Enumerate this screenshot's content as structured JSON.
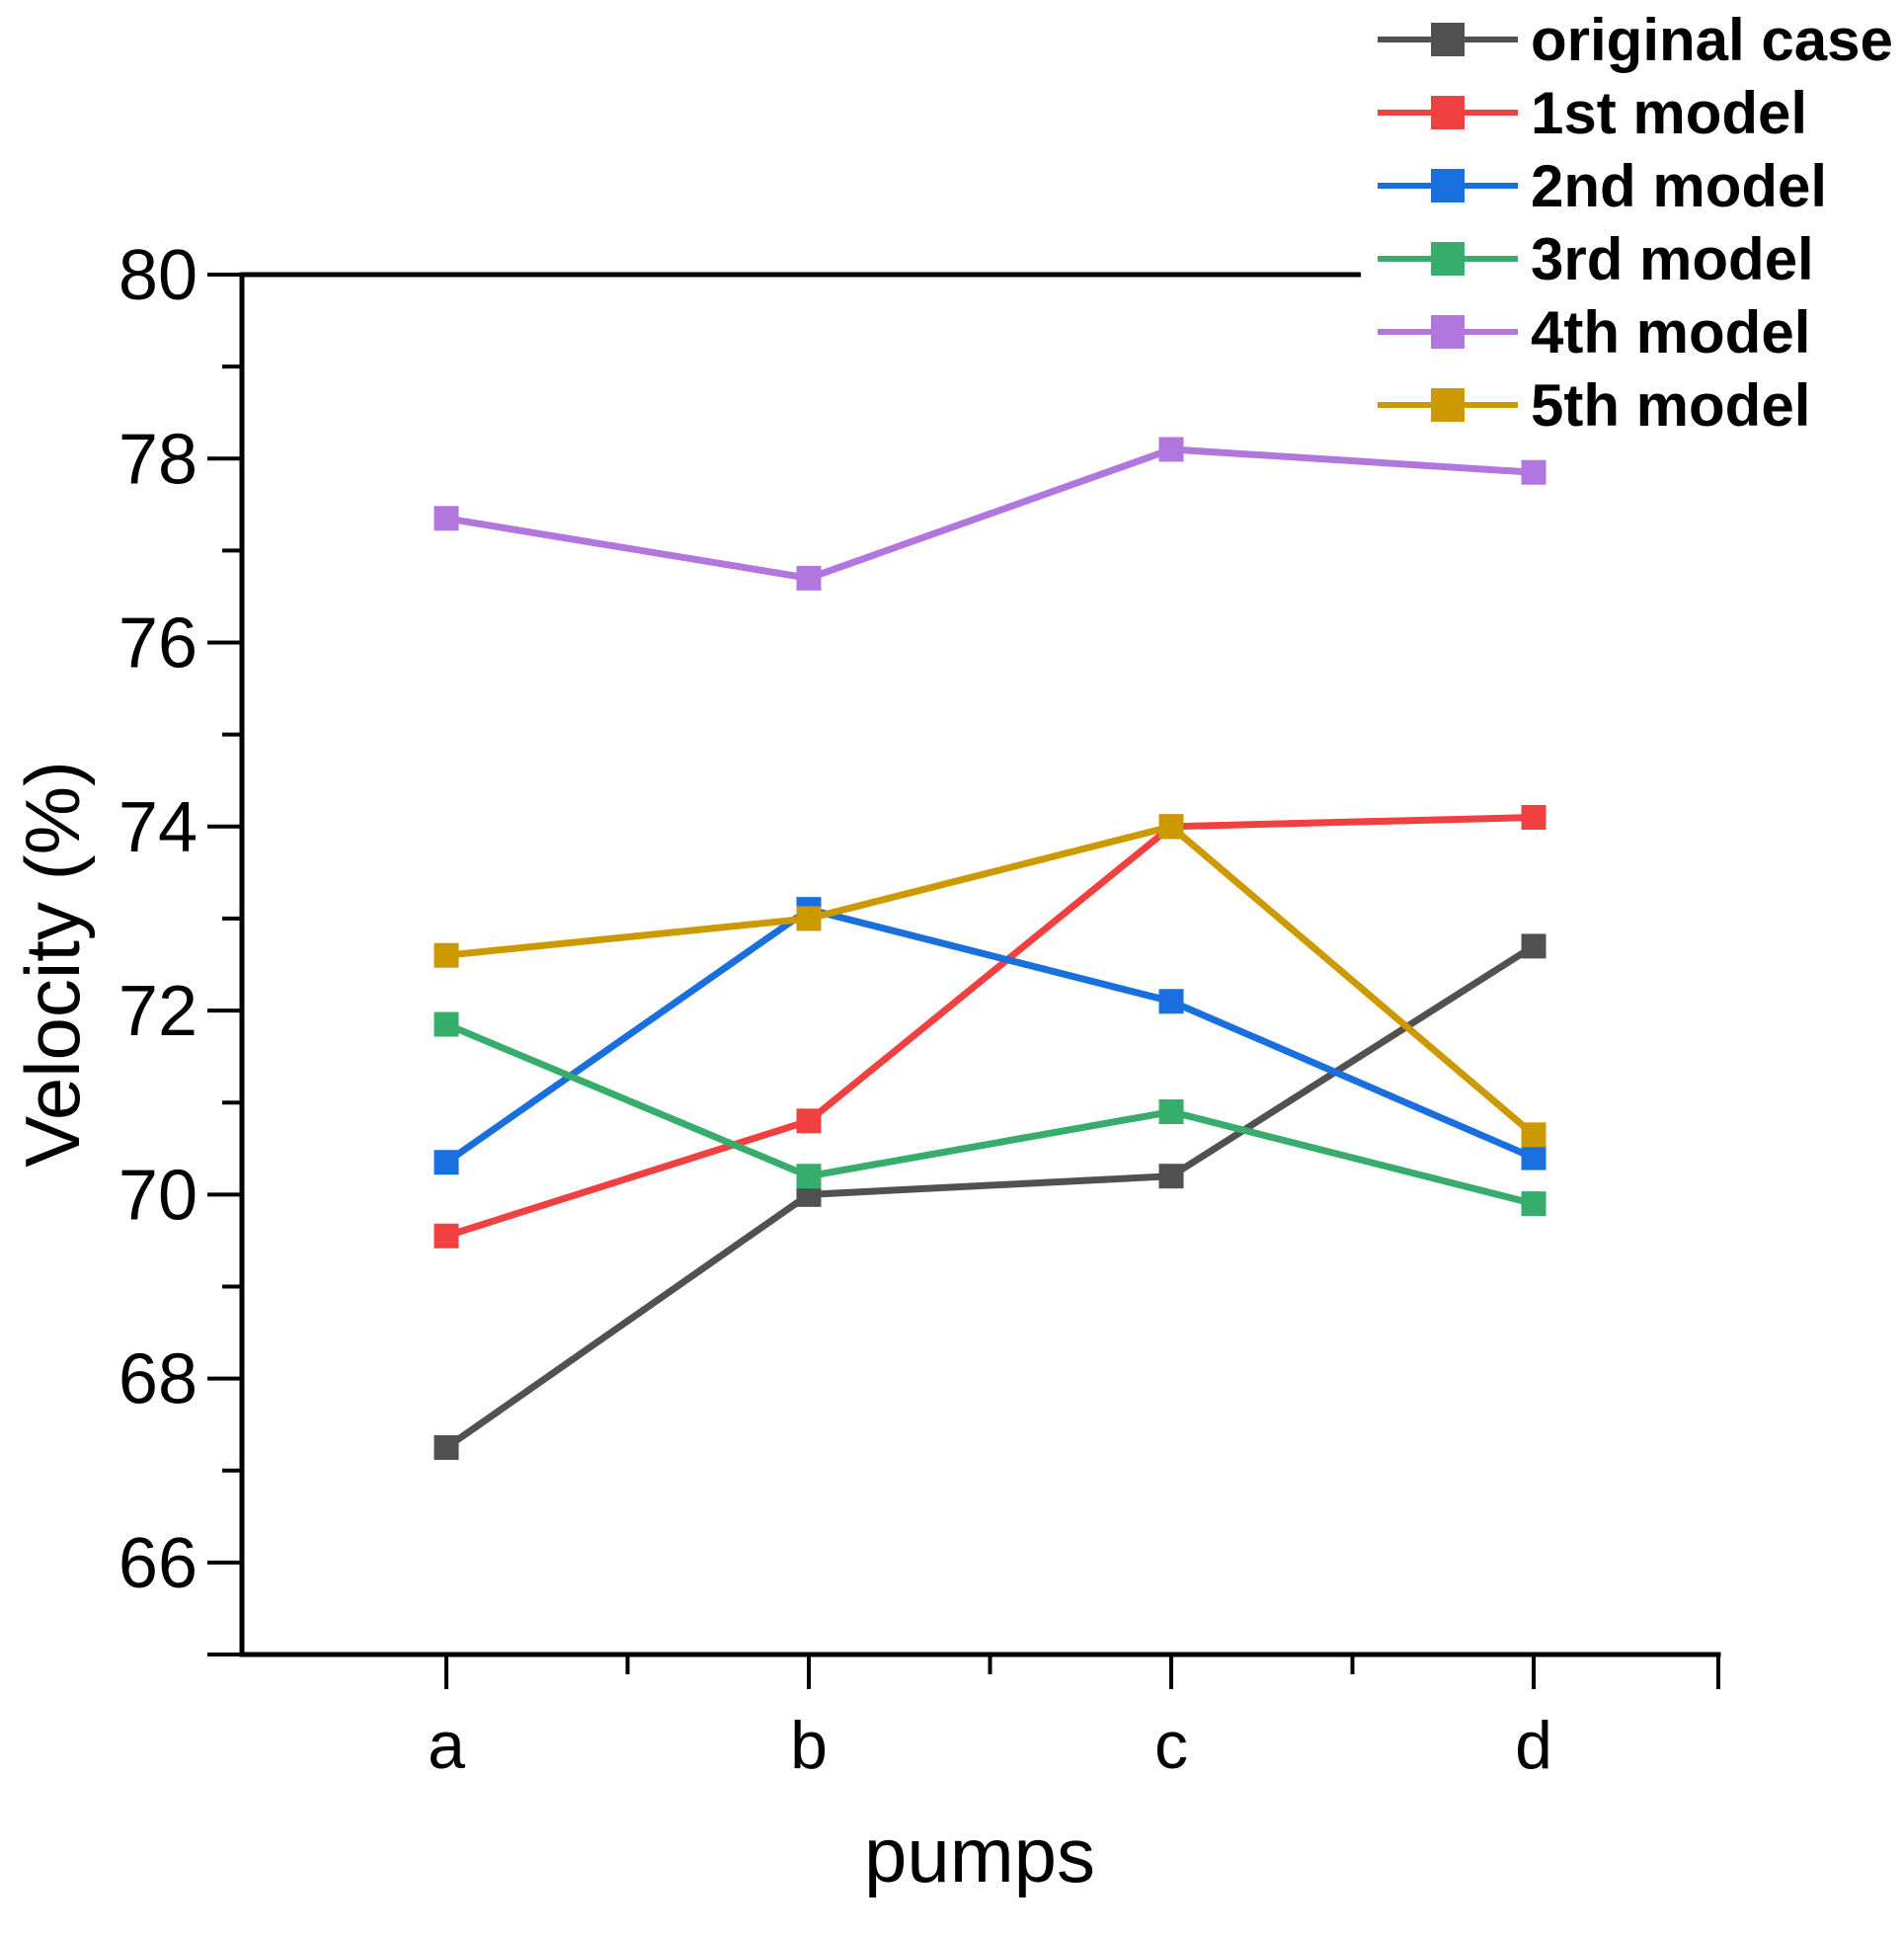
{
  "figure": {
    "background": "#ffffff"
  },
  "chart_data": {
    "type": "line",
    "title": "",
    "xlabel": "pumps",
    "ylabel": "Velocity (%)",
    "categories": [
      "a",
      "b",
      "c",
      "d"
    ],
    "ylim": [
      65,
      80
    ],
    "yticks_major": [
      66,
      68,
      70,
      72,
      74,
      76,
      78,
      80
    ],
    "yticks_minor": [
      67,
      69,
      71,
      73,
      75,
      77,
      79
    ],
    "grid": false,
    "marker": "square",
    "legend_position": "top-right",
    "series": [
      {
        "name": "original case",
        "color": "#515151",
        "values": [
          67.25,
          70.0,
          70.2,
          72.7
        ]
      },
      {
        "name": "1st model",
        "color": "#F14040",
        "values": [
          69.55,
          70.8,
          74.0,
          74.1
        ]
      },
      {
        "name": "2nd model",
        "color": "#1A6FDF",
        "values": [
          70.35,
          73.1,
          72.1,
          70.4
        ]
      },
      {
        "name": "3rd model",
        "color": "#37AD6B",
        "values": [
          71.85,
          70.2,
          70.9,
          69.9
        ]
      },
      {
        "name": "4th model",
        "color": "#B177DE",
        "values": [
          77.35,
          76.7,
          78.1,
          77.85
        ]
      },
      {
        "name": "5th model",
        "color": "#CC9900",
        "values": [
          72.6,
          73.0,
          74.0,
          70.65
        ]
      }
    ]
  }
}
